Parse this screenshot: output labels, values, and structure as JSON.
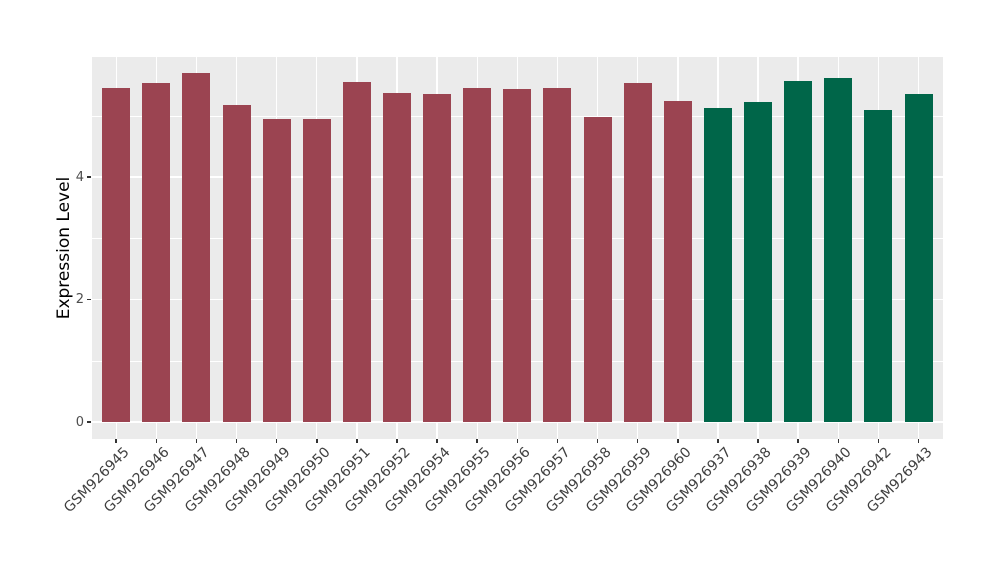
{
  "chart_data": {
    "type": "bar",
    "title": "",
    "xlabel": "",
    "ylabel": "Expression Level",
    "ylim": [
      0,
      5.97
    ],
    "yticks": [
      0,
      2,
      4
    ],
    "minor_gridlines": [
      1,
      3,
      5
    ],
    "grid": true,
    "legend_position": "none",
    "panel_background": "#EBEBEB",
    "gridline_color": "#FFFFFF",
    "bar_colors": {
      "maroon_group": "#9B4451",
      "green_group": "#006649"
    },
    "bars": [
      {
        "label": "GSM926945",
        "value": 5.46,
        "color": "#9B4451"
      },
      {
        "label": "GSM926946",
        "value": 5.53,
        "color": "#9B4451"
      },
      {
        "label": "GSM926947",
        "value": 5.69,
        "color": "#9B4451"
      },
      {
        "label": "GSM926948",
        "value": 5.17,
        "color": "#9B4451"
      },
      {
        "label": "GSM926949",
        "value": 4.94,
        "color": "#9B4451"
      },
      {
        "label": "GSM926950",
        "value": 4.94,
        "color": "#9B4451"
      },
      {
        "label": "GSM926951",
        "value": 5.55,
        "color": "#9B4451"
      },
      {
        "label": "GSM926952",
        "value": 5.37,
        "color": "#9B4451"
      },
      {
        "label": "GSM926954",
        "value": 5.36,
        "color": "#9B4451"
      },
      {
        "label": "GSM926955",
        "value": 5.46,
        "color": "#9B4451"
      },
      {
        "label": "GSM926956",
        "value": 5.43,
        "color": "#9B4451"
      },
      {
        "label": "GSM926957",
        "value": 5.46,
        "color": "#9B4451"
      },
      {
        "label": "GSM926958",
        "value": 4.98,
        "color": "#9B4451"
      },
      {
        "label": "GSM926959",
        "value": 5.54,
        "color": "#9B4451"
      },
      {
        "label": "GSM926960",
        "value": 5.24,
        "color": "#9B4451"
      },
      {
        "label": "GSM926937",
        "value": 5.12,
        "color": "#006649"
      },
      {
        "label": "GSM926938",
        "value": 5.22,
        "color": "#006649"
      },
      {
        "label": "GSM926939",
        "value": 5.56,
        "color": "#006649"
      },
      {
        "label": "GSM926940",
        "value": 5.61,
        "color": "#006649"
      },
      {
        "label": "GSM926942",
        "value": 5.09,
        "color": "#006649"
      },
      {
        "label": "GSM926943",
        "value": 5.36,
        "color": "#006649"
      }
    ]
  }
}
